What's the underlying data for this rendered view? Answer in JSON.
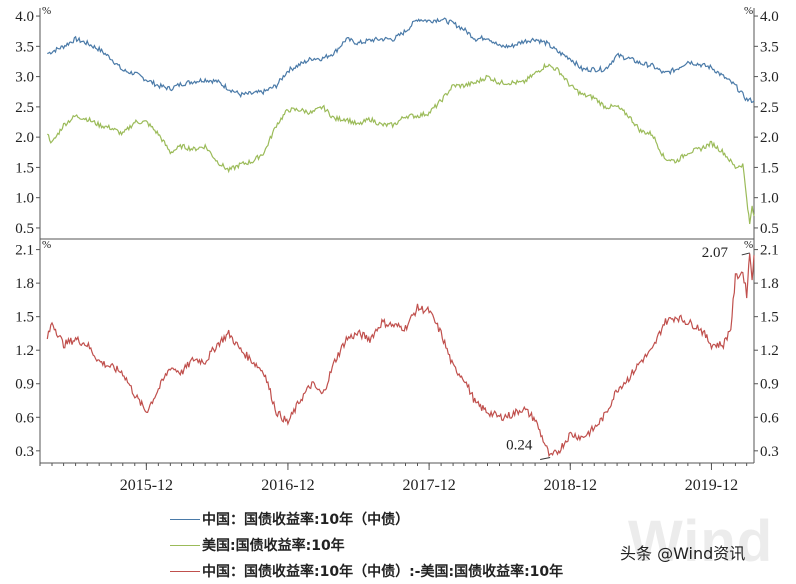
{
  "chart_data": [
    {
      "type": "line",
      "title": "",
      "unit_left": "%",
      "unit_right": "%",
      "ylim": [
        0.4,
        4.1
      ],
      "yticks": [
        0.5,
        1.0,
        1.5,
        2.0,
        2.5,
        3.0,
        3.5,
        4.0
      ],
      "ytick_labels": [
        "0.5",
        "1.0",
        "1.5",
        "2.0",
        "2.5",
        "3.0",
        "3.5",
        "4.0"
      ],
      "x_start": "2015-03",
      "x_end": "2020-03",
      "series": [
        {
          "name": "中国：国债收益率:10年（中债）",
          "color": "#4a7aa8",
          "points": [
            [
              "2015-03-20",
              3.38
            ],
            [
              "2015-05-01",
              3.5
            ],
            [
              "2015-06-01",
              3.62
            ],
            [
              "2015-07-01",
              3.55
            ],
            [
              "2015-08-01",
              3.45
            ],
            [
              "2015-09-01",
              3.3
            ],
            [
              "2015-10-01",
              3.1
            ],
            [
              "2015-11-01",
              3.05
            ],
            [
              "2015-12-01",
              2.95
            ],
            [
              "2016-01-01",
              2.85
            ],
            [
              "2016-02-01",
              2.8
            ],
            [
              "2016-03-01",
              2.88
            ],
            [
              "2016-04-01",
              2.92
            ],
            [
              "2016-05-01",
              2.95
            ],
            [
              "2016-06-01",
              2.92
            ],
            [
              "2016-07-01",
              2.8
            ],
            [
              "2016-08-01",
              2.7
            ],
            [
              "2016-09-01",
              2.72
            ],
            [
              "2016-10-01",
              2.75
            ],
            [
              "2016-11-01",
              2.85
            ],
            [
              "2016-12-01",
              3.1
            ],
            [
              "2017-01-01",
              3.2
            ],
            [
              "2017-02-01",
              3.3
            ],
            [
              "2017-03-01",
              3.3
            ],
            [
              "2017-04-01",
              3.4
            ],
            [
              "2017-05-01",
              3.62
            ],
            [
              "2017-06-01",
              3.55
            ],
            [
              "2017-07-01",
              3.6
            ],
            [
              "2017-08-01",
              3.62
            ],
            [
              "2017-09-01",
              3.62
            ],
            [
              "2017-10-01",
              3.75
            ],
            [
              "2017-11-01",
              3.95
            ],
            [
              "2017-12-01",
              3.92
            ],
            [
              "2018-01-01",
              3.95
            ],
            [
              "2018-02-01",
              3.88
            ],
            [
              "2018-03-01",
              3.78
            ],
            [
              "2018-04-01",
              3.62
            ],
            [
              "2018-05-01",
              3.65
            ],
            [
              "2018-06-01",
              3.5
            ],
            [
              "2018-07-01",
              3.5
            ],
            [
              "2018-08-01",
              3.58
            ],
            [
              "2018-09-01",
              3.62
            ],
            [
              "2018-10-01",
              3.55
            ],
            [
              "2018-11-01",
              3.4
            ],
            [
              "2018-12-01",
              3.3
            ],
            [
              "2019-01-01",
              3.12
            ],
            [
              "2019-02-01",
              3.12
            ],
            [
              "2019-03-01",
              3.12
            ],
            [
              "2019-04-01",
              3.35
            ],
            [
              "2019-05-01",
              3.3
            ],
            [
              "2019-06-01",
              3.22
            ],
            [
              "2019-07-01",
              3.18
            ],
            [
              "2019-08-01",
              3.05
            ],
            [
              "2019-09-01",
              3.12
            ],
            [
              "2019-10-01",
              3.25
            ],
            [
              "2019-11-01",
              3.2
            ],
            [
              "2019-12-01",
              3.15
            ],
            [
              "2020-01-01",
              3.0
            ],
            [
              "2020-02-01",
              2.85
            ],
            [
              "2020-03-01",
              2.62
            ],
            [
              "2020-03-20",
              2.6
            ]
          ]
        },
        {
          "name": "美国:国债收益率:10年",
          "color": "#9bbb59",
          "points": [
            [
              "2015-03-20",
              2.05
            ],
            [
              "2015-04-01",
              1.9
            ],
            [
              "2015-05-01",
              2.2
            ],
            [
              "2015-06-01",
              2.35
            ],
            [
              "2015-07-01",
              2.3
            ],
            [
              "2015-08-01",
              2.2
            ],
            [
              "2015-09-01",
              2.15
            ],
            [
              "2015-10-01",
              2.05
            ],
            [
              "2015-11-01",
              2.25
            ],
            [
              "2015-12-01",
              2.25
            ],
            [
              "2016-01-01",
              2.05
            ],
            [
              "2016-02-01",
              1.75
            ],
            [
              "2016-03-01",
              1.85
            ],
            [
              "2016-04-01",
              1.8
            ],
            [
              "2016-05-01",
              1.85
            ],
            [
              "2016-06-01",
              1.6
            ],
            [
              "2016-07-01",
              1.45
            ],
            [
              "2016-08-01",
              1.55
            ],
            [
              "2016-09-01",
              1.6
            ],
            [
              "2016-10-01",
              1.75
            ],
            [
              "2016-11-01",
              2.2
            ],
            [
              "2016-12-01",
              2.45
            ],
            [
              "2017-01-01",
              2.45
            ],
            [
              "2017-02-01",
              2.4
            ],
            [
              "2017-03-01",
              2.5
            ],
            [
              "2017-04-01",
              2.3
            ],
            [
              "2017-05-01",
              2.3
            ],
            [
              "2017-06-01",
              2.2
            ],
            [
              "2017-07-01",
              2.3
            ],
            [
              "2017-08-01",
              2.2
            ],
            [
              "2017-09-01",
              2.2
            ],
            [
              "2017-10-01",
              2.35
            ],
            [
              "2017-11-01",
              2.35
            ],
            [
              "2017-12-01",
              2.4
            ],
            [
              "2018-01-01",
              2.6
            ],
            [
              "2018-02-01",
              2.85
            ],
            [
              "2018-03-01",
              2.85
            ],
            [
              "2018-04-01",
              2.9
            ],
            [
              "2018-05-01",
              3.0
            ],
            [
              "2018-06-01",
              2.9
            ],
            [
              "2018-07-01",
              2.9
            ],
            [
              "2018-08-01",
              2.9
            ],
            [
              "2018-09-01",
              3.05
            ],
            [
              "2018-10-01",
              3.2
            ],
            [
              "2018-11-01",
              3.1
            ],
            [
              "2018-12-01",
              2.85
            ],
            [
              "2019-01-01",
              2.7
            ],
            [
              "2019-02-01",
              2.65
            ],
            [
              "2019-03-01",
              2.5
            ],
            [
              "2019-04-01",
              2.5
            ],
            [
              "2019-05-01",
              2.35
            ],
            [
              "2019-06-01",
              2.1
            ],
            [
              "2019-07-01",
              2.05
            ],
            [
              "2019-08-01",
              1.65
            ],
            [
              "2019-09-01",
              1.6
            ],
            [
              "2019-10-01",
              1.75
            ],
            [
              "2019-11-01",
              1.8
            ],
            [
              "2019-12-01",
              1.9
            ],
            [
              "2020-01-01",
              1.75
            ],
            [
              "2020-02-01",
              1.5
            ],
            [
              "2020-02-20",
              1.55
            ],
            [
              "2020-03-01",
              1.0
            ],
            [
              "2020-03-09",
              0.55
            ],
            [
              "2020-03-15",
              0.85
            ],
            [
              "2020-03-20",
              0.7
            ]
          ]
        }
      ]
    },
    {
      "type": "line",
      "title": "",
      "unit_left": "%",
      "unit_right": "%",
      "ylim": [
        0.2,
        2.15
      ],
      "yticks": [
        0.3,
        0.6,
        0.9,
        1.2,
        1.5,
        1.8,
        2.1
      ],
      "ytick_labels": [
        "0.3",
        "0.6",
        "0.9",
        "1.2",
        "1.5",
        "1.8",
        "2.1"
      ],
      "x_start": "2015-03",
      "x_end": "2020-03",
      "xticks": [
        "2015-12",
        "2016-12",
        "2017-12",
        "2018-12",
        "2019-12"
      ],
      "series": [
        {
          "name": "中国：国债收益率:10年（中债）:-美国:国债收益率:10年",
          "color": "#c0504d",
          "points": [
            [
              "2015-03-20",
              1.3
            ],
            [
              "2015-04-01",
              1.45
            ],
            [
              "2015-05-01",
              1.25
            ],
            [
              "2015-06-01",
              1.3
            ],
            [
              "2015-07-01",
              1.25
            ],
            [
              "2015-08-01",
              1.1
            ],
            [
              "2015-09-01",
              1.05
            ],
            [
              "2015-10-01",
              1.0
            ],
            [
              "2015-11-01",
              0.8
            ],
            [
              "2015-12-01",
              0.65
            ],
            [
              "2016-01-01",
              0.85
            ],
            [
              "2016-02-01",
              1.05
            ],
            [
              "2016-03-01",
              1.0
            ],
            [
              "2016-04-01",
              1.12
            ],
            [
              "2016-05-01",
              1.1
            ],
            [
              "2016-06-01",
              1.25
            ],
            [
              "2016-07-01",
              1.35
            ],
            [
              "2016-08-01",
              1.2
            ],
            [
              "2016-09-01",
              1.1
            ],
            [
              "2016-10-01",
              1.0
            ],
            [
              "2016-11-01",
              0.65
            ],
            [
              "2016-12-01",
              0.55
            ],
            [
              "2017-01-01",
              0.75
            ],
            [
              "2017-02-01",
              0.9
            ],
            [
              "2017-03-01",
              0.8
            ],
            [
              "2017-04-01",
              1.1
            ],
            [
              "2017-05-01",
              1.3
            ],
            [
              "2017-06-01",
              1.35
            ],
            [
              "2017-07-01",
              1.3
            ],
            [
              "2017-08-01",
              1.45
            ],
            [
              "2017-09-01",
              1.42
            ],
            [
              "2017-10-01",
              1.4
            ],
            [
              "2017-11-01",
              1.58
            ],
            [
              "2017-12-01",
              1.55
            ],
            [
              "2018-01-01",
              1.35
            ],
            [
              "2018-02-01",
              1.05
            ],
            [
              "2018-03-01",
              0.95
            ],
            [
              "2018-04-01",
              0.72
            ],
            [
              "2018-05-01",
              0.65
            ],
            [
              "2018-06-01",
              0.6
            ],
            [
              "2018-07-01",
              0.62
            ],
            [
              "2018-08-01",
              0.68
            ],
            [
              "2018-09-01",
              0.58
            ],
            [
              "2018-10-01",
              0.32
            ],
            [
              "2018-10-10",
              0.24
            ],
            [
              "2018-11-01",
              0.3
            ],
            [
              "2018-12-01",
              0.45
            ],
            [
              "2019-01-01",
              0.42
            ],
            [
              "2019-02-01",
              0.5
            ],
            [
              "2019-03-01",
              0.62
            ],
            [
              "2019-04-01",
              0.85
            ],
            [
              "2019-05-01",
              0.95
            ],
            [
              "2019-06-01",
              1.1
            ],
            [
              "2019-07-01",
              1.2
            ],
            [
              "2019-08-01",
              1.45
            ],
            [
              "2019-09-01",
              1.5
            ],
            [
              "2019-10-01",
              1.45
            ],
            [
              "2019-11-01",
              1.4
            ],
            [
              "2019-12-01",
              1.25
            ],
            [
              "2020-01-01",
              1.25
            ],
            [
              "2020-01-20",
              1.4
            ],
            [
              "2020-02-01",
              1.85
            ],
            [
              "2020-02-20",
              1.9
            ],
            [
              "2020-03-01",
              1.7
            ],
            [
              "2020-03-09",
              2.07
            ],
            [
              "2020-03-15",
              1.85
            ],
            [
              "2020-03-20",
              2.05
            ]
          ]
        }
      ],
      "annotations": [
        {
          "text": "0.24",
          "x": "2018-10-10",
          "y": 0.24
        },
        {
          "text": "2.07",
          "x": "2020-03-09",
          "y": 2.07
        }
      ]
    }
  ],
  "legend": [
    {
      "label": "中国：国债收益率:10年（中债）",
      "color": "#4a7aa8"
    },
    {
      "label": "美国:国债收益率:10年",
      "color": "#9bbb59"
    },
    {
      "label": "中国：国债收益率:10年（中债）:-美国:国债收益率:10年",
      "color": "#c0504d"
    }
  ],
  "watermark": {
    "logo_text": "Wind",
    "caption": "头条 @Wind资讯"
  }
}
